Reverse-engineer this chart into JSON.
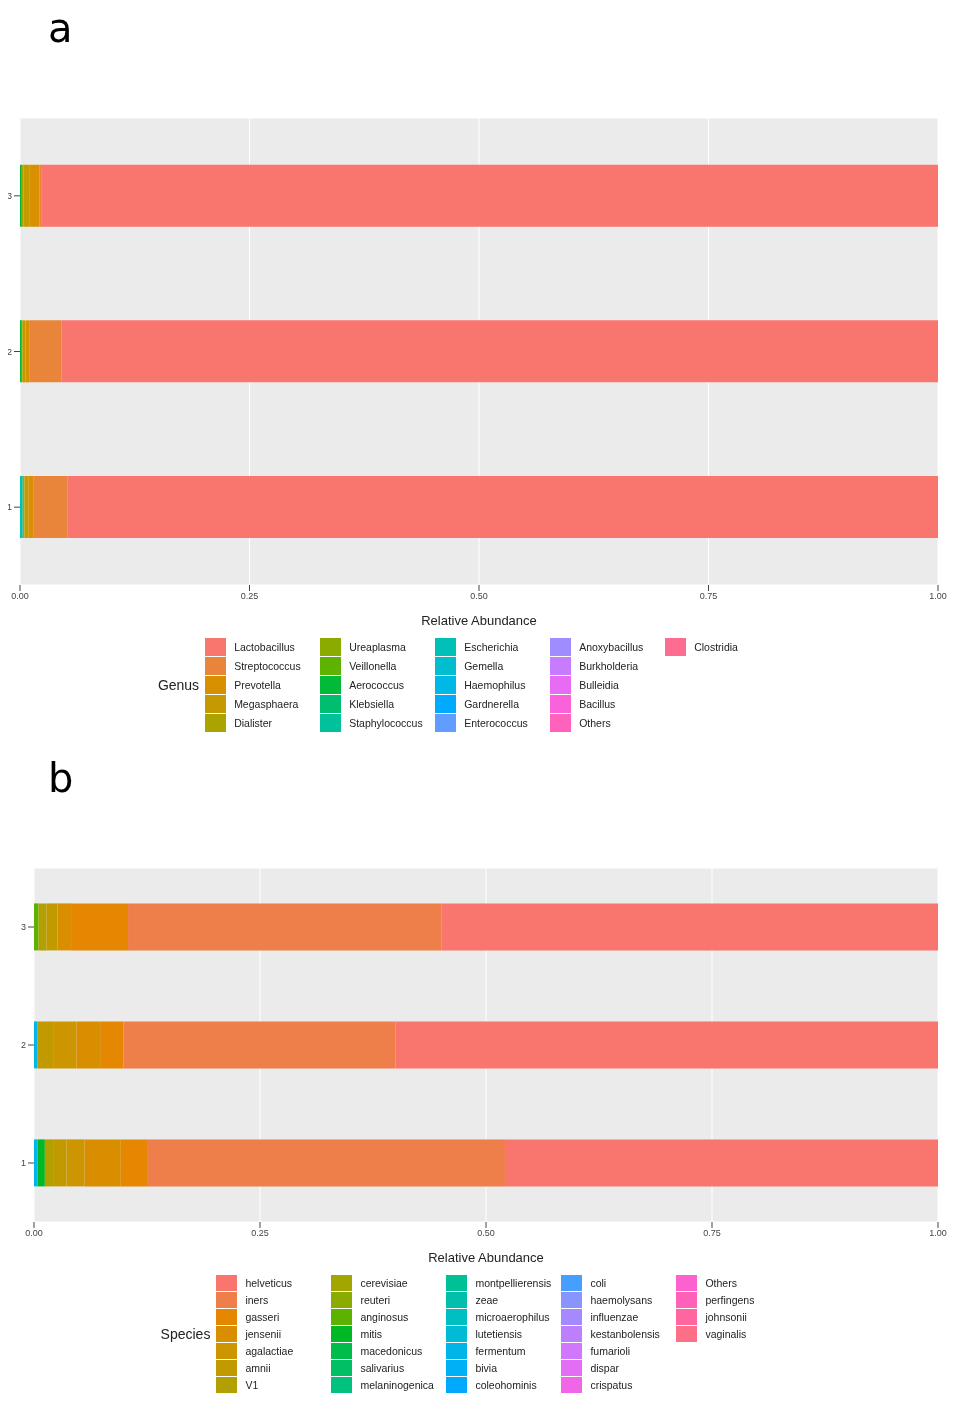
{
  "chart_data": [
    {
      "type": "bar",
      "title": "a",
      "xlabel": "Relative Abundance",
      "legend_title": "Genus",
      "orientation": "horizontal",
      "stacked": true,
      "grid": true,
      "legend": "bottom",
      "categories": [
        "3",
        "2",
        "1"
      ],
      "xlim": [
        0,
        1
      ],
      "xticks": [
        {
          "value": 0,
          "label": "0.00"
        },
        {
          "value": 0.25,
          "label": "0.25"
        },
        {
          "value": 0.5,
          "label": "0.50"
        },
        {
          "value": 0.75,
          "label": "0.75"
        },
        {
          "value": 1,
          "label": "1.00"
        }
      ],
      "series": [
        {
          "name": "Clostridia",
          "color": "#ff6c91",
          "values": [
            0,
            0,
            0
          ]
        },
        {
          "name": "Others",
          "color": "#ff62bc",
          "values": [
            0,
            0,
            0
          ]
        },
        {
          "name": "Bacillus",
          "color": "#fa62db",
          "values": [
            0,
            0,
            0
          ]
        },
        {
          "name": "Bulleidia",
          "color": "#e76bf3",
          "values": [
            0,
            0,
            0
          ]
        },
        {
          "name": "Burkholderia",
          "color": "#c77cff",
          "values": [
            0,
            0,
            0
          ]
        },
        {
          "name": "Anoxybacillus",
          "color": "#9f8cff",
          "values": [
            0,
            0,
            0
          ]
        },
        {
          "name": "Enterococcus",
          "color": "#619cff",
          "values": [
            0,
            0,
            0
          ]
        },
        {
          "name": "Gardnerella",
          "color": "#00abfd",
          "values": [
            0,
            0,
            0
          ]
        },
        {
          "name": "Haemophilus",
          "color": "#00b8e5",
          "values": [
            0,
            0,
            0
          ]
        },
        {
          "name": "Gemella",
          "color": "#00bdd0",
          "values": [
            0,
            0,
            0
          ]
        },
        {
          "name": "Escherichia",
          "color": "#00c0b8",
          "values": [
            0,
            0,
            0.003
          ]
        },
        {
          "name": "Staphylococcus",
          "color": "#00c19a",
          "values": [
            0,
            0,
            0
          ]
        },
        {
          "name": "Klebsiella",
          "color": "#00be70",
          "values": [
            0,
            0,
            0
          ]
        },
        {
          "name": "Aerococcus",
          "color": "#00ba38",
          "values": [
            0.002,
            0.002,
            0
          ]
        },
        {
          "name": "Veillonella",
          "color": "#5eb300",
          "values": [
            0,
            0,
            0
          ]
        },
        {
          "name": "Ureaplasma",
          "color": "#8cab00",
          "values": [
            0,
            0,
            0
          ]
        },
        {
          "name": "Dialister",
          "color": "#aaa300",
          "values": [
            0.002,
            0.001,
            0.002
          ]
        },
        {
          "name": "Megasphaera",
          "color": "#c49a00",
          "values": [
            0.006,
            0.003,
            0.004
          ]
        },
        {
          "name": "Prevotella",
          "color": "#d89000",
          "values": [
            0.011,
            0.004,
            0.006
          ]
        },
        {
          "name": "Streptococcus",
          "color": "#e8853a",
          "values": [
            0.002,
            0.035,
            0.037
          ]
        },
        {
          "name": "Lactobacillus",
          "color": "#f8766d",
          "values": [
            0.977,
            0.955,
            0.948
          ]
        }
      ]
    },
    {
      "type": "bar",
      "title": "b",
      "xlabel": "Relative Abundance",
      "legend_title": "Species",
      "orientation": "horizontal",
      "stacked": true,
      "grid": true,
      "legend": "bottom",
      "categories": [
        "3",
        "2",
        "1"
      ],
      "xlim": [
        0,
        1
      ],
      "xticks": [
        {
          "value": 0,
          "label": "0.00"
        },
        {
          "value": 0.25,
          "label": "0.25"
        },
        {
          "value": 0.5,
          "label": "0.50"
        },
        {
          "value": 0.75,
          "label": "0.75"
        },
        {
          "value": 1,
          "label": "1.00"
        }
      ],
      "series": [
        {
          "name": "vaginalis",
          "color": "#fd6f86",
          "values": [
            0,
            0,
            0
          ]
        },
        {
          "name": "johnsonii",
          "color": "#ff66a0",
          "values": [
            0,
            0,
            0
          ]
        },
        {
          "name": "perfingens",
          "color": "#ff61b8",
          "values": [
            0,
            0,
            0
          ]
        },
        {
          "name": "Others",
          "color": "#fc61d0",
          "values": [
            0,
            0,
            0
          ]
        },
        {
          "name": "crispatus",
          "color": "#f066e6",
          "values": [
            0,
            0,
            0
          ]
        },
        {
          "name": "dispar",
          "color": "#e26ef4",
          "values": [
            0,
            0,
            0
          ]
        },
        {
          "name": "fumarioli",
          "color": "#d177fd",
          "values": [
            0,
            0,
            0
          ]
        },
        {
          "name": "kestanbolensis",
          "color": "#bc80ff",
          "values": [
            0,
            0,
            0
          ]
        },
        {
          "name": "influenzae",
          "color": "#a58aff",
          "values": [
            0,
            0,
            0
          ]
        },
        {
          "name": "haemolysans",
          "color": "#8994ff",
          "values": [
            0,
            0,
            0
          ]
        },
        {
          "name": "coli",
          "color": "#469efe",
          "values": [
            0,
            0,
            0
          ]
        },
        {
          "name": "coleohominis",
          "color": "#00a8fe",
          "values": [
            0,
            0,
            0
          ]
        },
        {
          "name": "bivia",
          "color": "#00b0f6",
          "values": [
            0,
            0,
            0
          ]
        },
        {
          "name": "fermentum",
          "color": "#00b6e8",
          "values": [
            0,
            0.004,
            0.004
          ]
        },
        {
          "name": "lutetiensis",
          "color": "#00bbd6",
          "values": [
            0,
            0,
            0
          ]
        },
        {
          "name": "microaerophilus",
          "color": "#00bec2",
          "values": [
            0,
            0,
            0
          ]
        },
        {
          "name": "zeae",
          "color": "#00c0ad",
          "values": [
            0,
            0,
            0
          ]
        },
        {
          "name": "montpellierensis",
          "color": "#00c096",
          "values": [
            0,
            0,
            0
          ]
        },
        {
          "name": "melaninogenica",
          "color": "#00c17d",
          "values": [
            0,
            0,
            0
          ]
        },
        {
          "name": "salivarius",
          "color": "#00bf65",
          "values": [
            0,
            0,
            0
          ]
        },
        {
          "name": "macedonicus",
          "color": "#00bc4a",
          "values": [
            0,
            0,
            0
          ]
        },
        {
          "name": "mitis",
          "color": "#00b823",
          "values": [
            0,
            0,
            0.008
          ]
        },
        {
          "name": "anginosus",
          "color": "#5bb300",
          "values": [
            0.005,
            0,
            0
          ]
        },
        {
          "name": "reuteri",
          "color": "#8aab00",
          "values": [
            0,
            0,
            0
          ]
        },
        {
          "name": "cerevisiae",
          "color": "#a2a600",
          "values": [
            0,
            0,
            0
          ]
        },
        {
          "name": "V1",
          "color": "#b29f00",
          "values": [
            0.009,
            0,
            0.01
          ]
        },
        {
          "name": "amnii",
          "color": "#c19a00",
          "values": [
            0.012,
            0.018,
            0.014
          ]
        },
        {
          "name": "agalactiae",
          "color": "#cd9500",
          "values": [
            0,
            0.025,
            0.02
          ]
        },
        {
          "name": "jensenii",
          "color": "#d98e00",
          "values": [
            0.015,
            0.027,
            0.04
          ]
        },
        {
          "name": "gasseri",
          "color": "#e58700",
          "values": [
            0.063,
            0.025,
            0.029
          ]
        },
        {
          "name": "iners",
          "color": "#ef7f4a",
          "values": [
            0.347,
            0.301,
            0.396
          ]
        },
        {
          "name": "helveticus",
          "color": "#f8766d",
          "values": [
            0.549,
            0.6,
            0.479
          ]
        }
      ]
    }
  ]
}
